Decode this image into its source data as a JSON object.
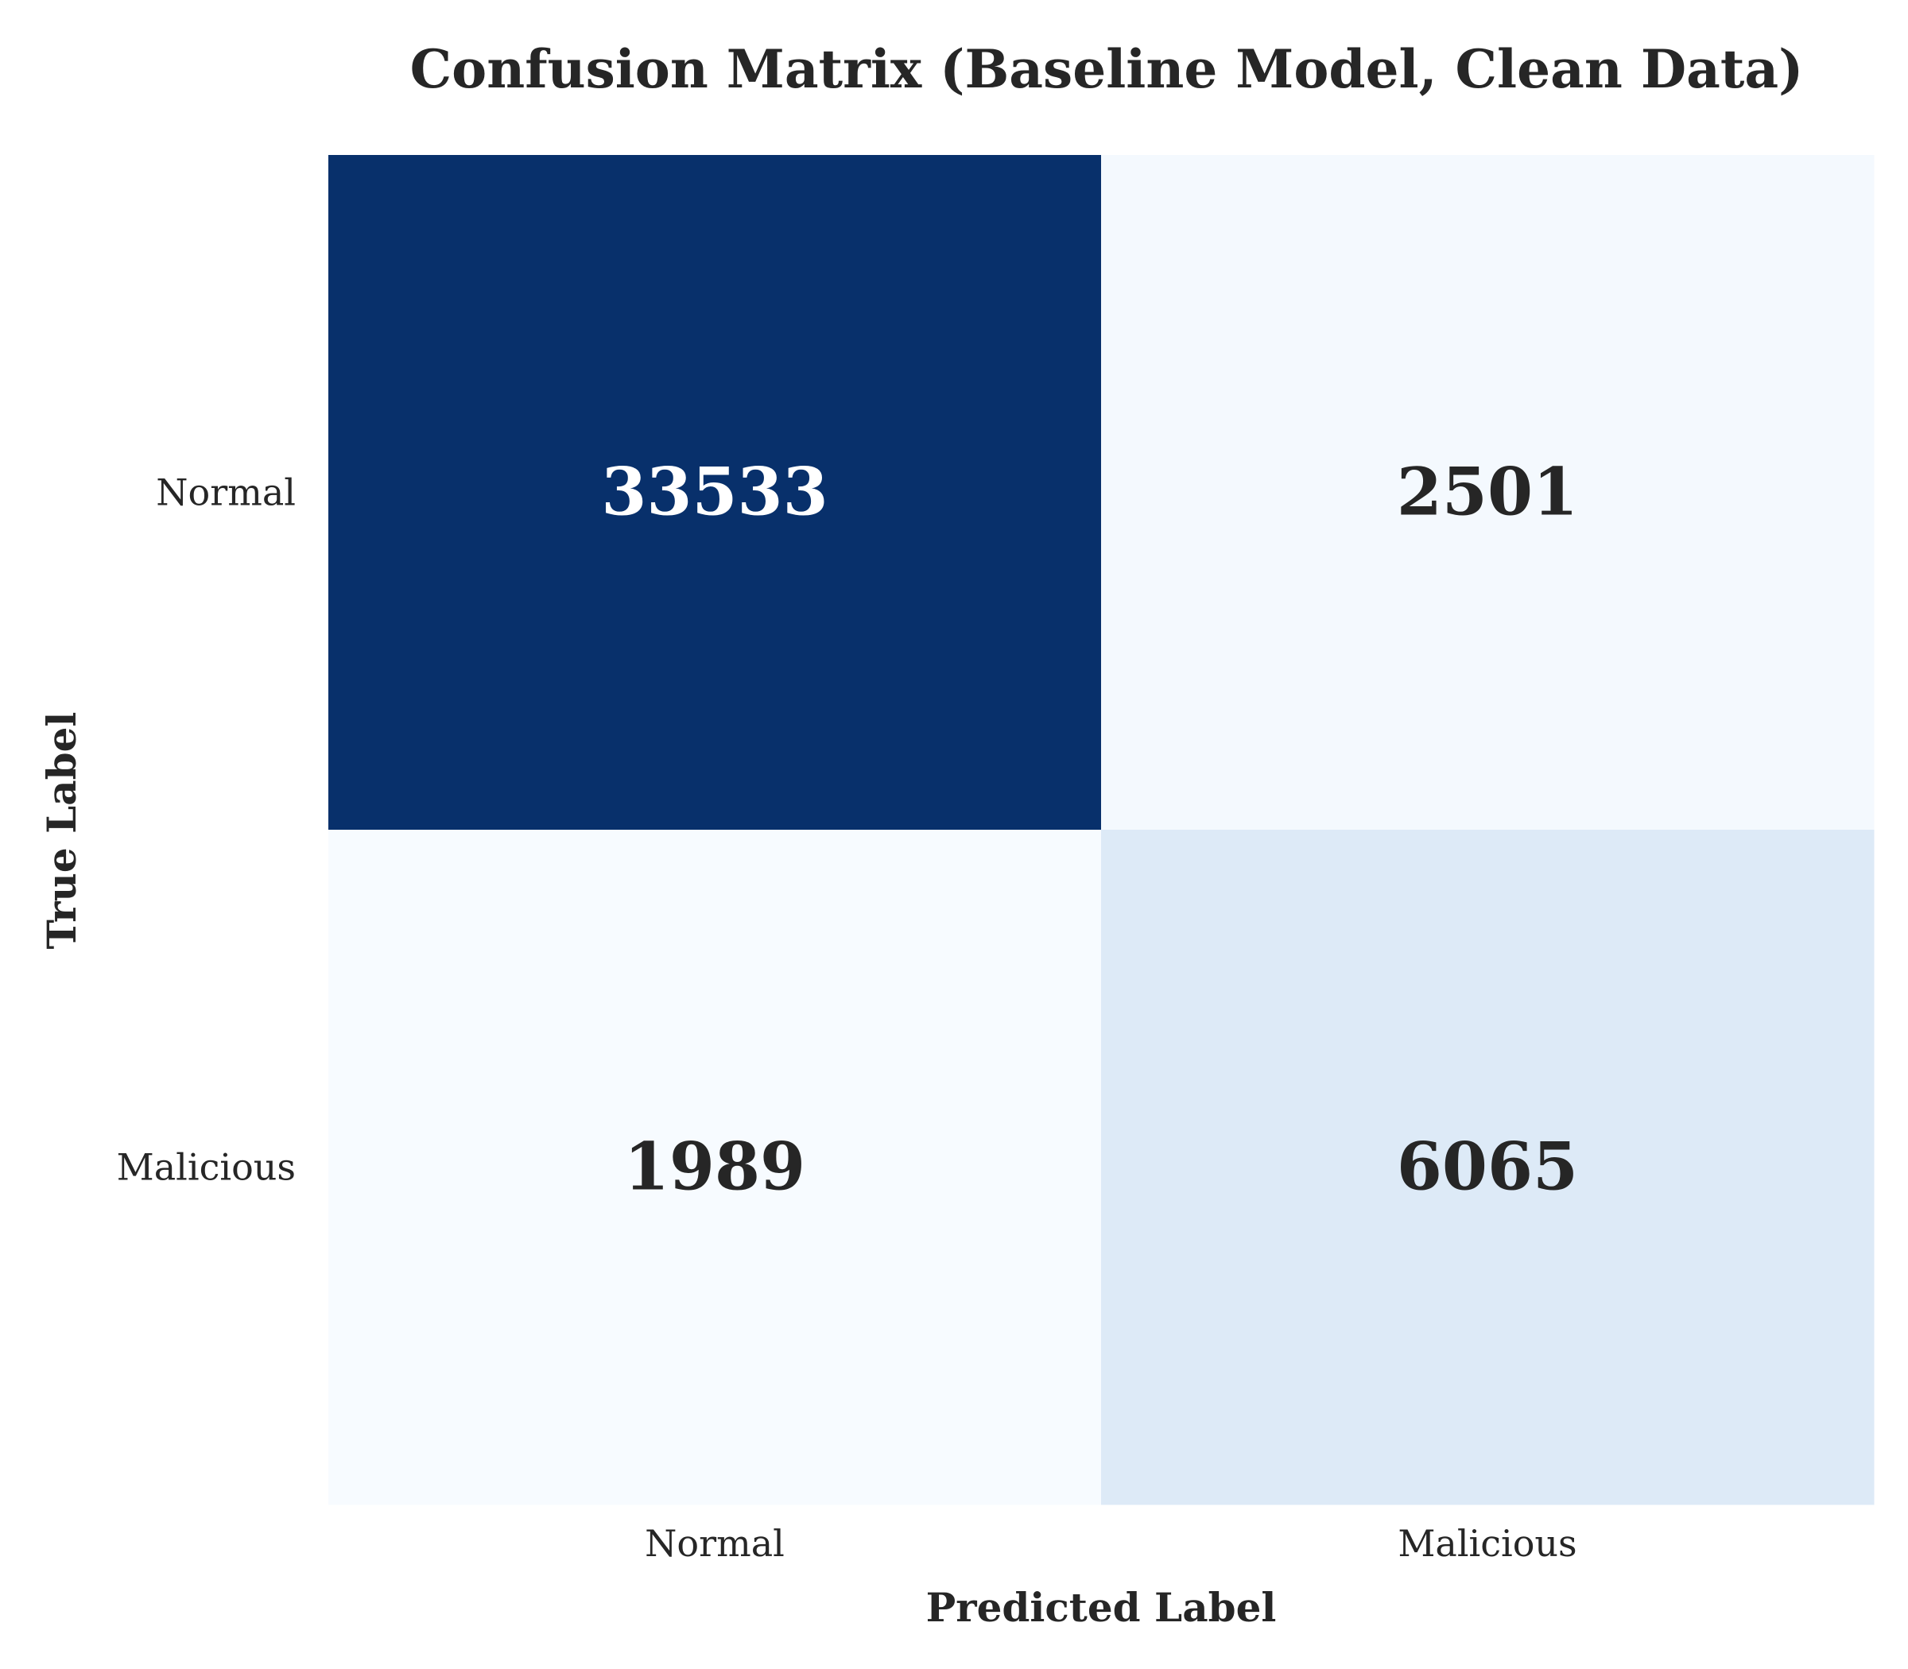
{
  "chart_data": {
    "type": "heatmap",
    "title": "Confusion Matrix (Baseline Model, Clean Data)",
    "xlabel": "Predicted Label",
    "ylabel": "True Label",
    "x_categories": [
      "Normal",
      "Malicious"
    ],
    "y_categories": [
      "Normal",
      "Malicious"
    ],
    "values": [
      [
        33533,
        2501
      ],
      [
        1989,
        6065
      ]
    ],
    "colormap": "Blues",
    "colors": {
      "low": "#f7fbff",
      "high": "#08306b",
      "text_dark": "#262626",
      "text_light": "#ffffff"
    },
    "colorbar": false,
    "grid": false
  }
}
